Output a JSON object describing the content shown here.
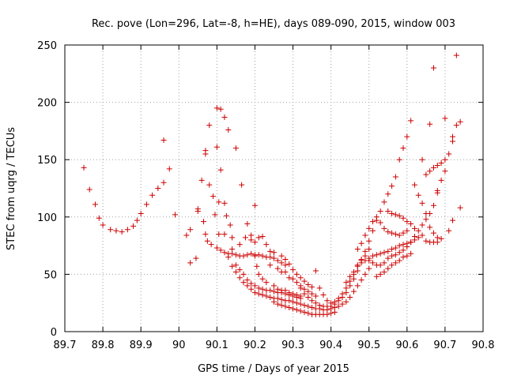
{
  "chart_data": {
    "type": "scatter",
    "title": "Rec. pove (Lon=296, Lat=-8, h=HE), days 089-090, 2015, window 003",
    "xlabel": "GPS time / Days of year 2015",
    "ylabel": "STEC from uqrg / TECUs",
    "xlim": [
      89.7,
      90.8
    ],
    "ylim": [
      0,
      250
    ],
    "xticks": [
      "89.7",
      "89.8",
      "89.9",
      "90",
      "90.1",
      "90.2",
      "90.3",
      "90.4",
      "90.5",
      "90.6",
      "90.7",
      "90.8"
    ],
    "yticks": [
      "0",
      "50",
      "100",
      "150",
      "200",
      "250"
    ],
    "grid": true,
    "marker": "+",
    "color": "#cc0000",
    "points": [
      [
        89.75,
        143
      ],
      [
        89.765,
        124
      ],
      [
        89.78,
        111
      ],
      [
        89.79,
        99
      ],
      [
        89.8,
        93
      ],
      [
        89.82,
        89
      ],
      [
        89.835,
        88
      ],
      [
        89.85,
        87
      ],
      [
        89.865,
        89
      ],
      [
        89.88,
        92
      ],
      [
        89.89,
        97
      ],
      [
        89.9,
        103
      ],
      [
        89.915,
        111
      ],
      [
        89.93,
        119
      ],
      [
        89.945,
        125
      ],
      [
        89.96,
        130
      ],
      [
        89.975,
        142
      ],
      [
        89.96,
        167
      ],
      [
        89.99,
        102
      ],
      [
        90.02,
        84
      ],
      [
        90.03,
        89
      ],
      [
        90.05,
        105
      ],
      [
        90.05,
        107
      ],
      [
        90.065,
        96
      ],
      [
        90.07,
        85
      ],
      [
        90.075,
        79
      ],
      [
        90.085,
        76
      ],
      [
        90.1,
        73
      ],
      [
        90.11,
        71
      ],
      [
        90.12,
        69
      ],
      [
        90.13,
        68
      ],
      [
        90.14,
        68
      ],
      [
        90.15,
        67
      ],
      [
        90.16,
        66
      ],
      [
        90.17,
        66
      ],
      [
        90.18,
        67
      ],
      [
        90.19,
        68
      ],
      [
        90.2,
        67
      ],
      [
        90.21,
        67
      ],
      [
        90.22,
        66
      ],
      [
        90.23,
        65
      ],
      [
        90.24,
        65
      ],
      [
        90.25,
        64
      ],
      [
        90.26,
        62
      ],
      [
        90.27,
        60
      ],
      [
        90.28,
        58
      ],
      [
        90.03,
        60
      ],
      [
        90.045,
        64
      ],
      [
        90.06,
        132
      ],
      [
        90.07,
        155
      ],
      [
        90.07,
        158
      ],
      [
        90.08,
        128
      ],
      [
        90.08,
        180
      ],
      [
        90.09,
        118
      ],
      [
        90.1,
        161
      ],
      [
        90.1,
        195
      ],
      [
        90.11,
        194
      ],
      [
        90.11,
        141
      ],
      [
        90.12,
        187
      ],
      [
        90.13,
        176
      ],
      [
        90.15,
        160
      ],
      [
        90.165,
        128
      ],
      [
        90.095,
        102
      ],
      [
        90.105,
        113
      ],
      [
        90.12,
        112
      ],
      [
        90.125,
        101
      ],
      [
        90.135,
        93
      ],
      [
        90.14,
        82
      ],
      [
        90.105,
        85
      ],
      [
        90.12,
        85
      ],
      [
        90.2,
        110
      ],
      [
        90.13,
        65
      ],
      [
        90.14,
        57
      ],
      [
        90.15,
        52
      ],
      [
        90.16,
        47
      ],
      [
        90.17,
        43
      ],
      [
        90.18,
        40
      ],
      [
        90.19,
        37
      ],
      [
        90.2,
        34
      ],
      [
        90.21,
        33
      ],
      [
        90.22,
        32
      ],
      [
        90.23,
        31
      ],
      [
        90.24,
        30
      ],
      [
        90.25,
        29
      ],
      [
        90.26,
        29
      ],
      [
        90.27,
        28
      ],
      [
        90.28,
        27
      ],
      [
        90.29,
        27
      ],
      [
        90.14,
        72
      ],
      [
        90.16,
        76
      ],
      [
        90.175,
        82
      ],
      [
        90.19,
        80
      ],
      [
        90.2,
        78
      ],
      [
        90.21,
        82
      ],
      [
        90.22,
        83
      ],
      [
        90.23,
        76
      ],
      [
        90.24,
        70
      ],
      [
        90.25,
        69
      ],
      [
        90.27,
        66
      ],
      [
        90.28,
        63
      ],
      [
        90.29,
        59
      ],
      [
        90.3,
        54
      ],
      [
        90.31,
        50
      ],
      [
        90.32,
        47
      ],
      [
        90.33,
        44
      ],
      [
        90.34,
        41
      ],
      [
        90.35,
        39
      ],
      [
        90.15,
        58
      ],
      [
        90.16,
        54
      ],
      [
        90.17,
        50
      ],
      [
        90.18,
        45
      ],
      [
        90.19,
        42
      ],
      [
        90.2,
        40
      ],
      [
        90.21,
        38
      ],
      [
        90.22,
        37
      ],
      [
        90.23,
        36
      ],
      [
        90.24,
        36
      ],
      [
        90.25,
        35
      ],
      [
        90.26,
        34
      ],
      [
        90.27,
        34
      ],
      [
        90.28,
        33
      ],
      [
        90.29,
        32
      ],
      [
        90.3,
        31
      ],
      [
        90.31,
        30
      ],
      [
        90.32,
        29
      ],
      [
        90.18,
        94
      ],
      [
        90.19,
        84
      ],
      [
        90.2,
        66
      ],
      [
        90.205,
        57
      ],
      [
        90.21,
        50
      ],
      [
        90.22,
        46
      ],
      [
        90.23,
        43
      ],
      [
        90.25,
        40
      ],
      [
        90.26,
        37
      ],
      [
        90.27,
        36
      ],
      [
        90.28,
        36
      ],
      [
        90.29,
        34
      ],
      [
        90.3,
        33
      ],
      [
        90.31,
        32
      ],
      [
        90.32,
        31
      ],
      [
        90.24,
        58
      ],
      [
        90.26,
        55
      ],
      [
        90.27,
        52
      ],
      [
        90.28,
        52
      ],
      [
        90.29,
        47
      ],
      [
        90.3,
        46
      ],
      [
        90.31,
        43
      ],
      [
        90.32,
        40
      ],
      [
        90.33,
        37
      ],
      [
        90.34,
        35
      ],
      [
        90.35,
        33
      ],
      [
        90.36,
        31
      ],
      [
        90.25,
        26
      ],
      [
        90.26,
        24
      ],
      [
        90.27,
        23
      ],
      [
        90.28,
        22
      ],
      [
        90.29,
        21
      ],
      [
        90.3,
        20
      ],
      [
        90.31,
        19
      ],
      [
        90.32,
        18
      ],
      [
        90.33,
        17
      ],
      [
        90.34,
        16
      ],
      [
        90.35,
        15
      ],
      [
        90.36,
        15
      ],
      [
        90.37,
        15
      ],
      [
        90.38,
        15
      ],
      [
        90.39,
        15
      ],
      [
        90.4,
        16
      ],
      [
        90.41,
        17
      ],
      [
        90.3,
        26
      ],
      [
        90.31,
        25
      ],
      [
        90.32,
        24
      ],
      [
        90.33,
        23
      ],
      [
        90.34,
        22
      ],
      [
        90.35,
        21
      ],
      [
        90.36,
        20
      ],
      [
        90.37,
        20
      ],
      [
        90.38,
        19
      ],
      [
        90.39,
        19
      ],
      [
        90.4,
        20
      ],
      [
        90.41,
        21
      ],
      [
        90.42,
        22
      ],
      [
        90.43,
        24
      ],
      [
        90.44,
        26
      ],
      [
        90.45,
        30
      ],
      [
        90.46,
        35
      ],
      [
        90.47,
        40
      ],
      [
        90.48,
        45
      ],
      [
        90.49,
        50
      ],
      [
        90.5,
        55
      ],
      [
        90.32,
        38
      ],
      [
        90.33,
        33
      ],
      [
        90.34,
        30
      ],
      [
        90.35,
        27
      ],
      [
        90.36,
        25
      ],
      [
        90.37,
        23
      ],
      [
        90.38,
        22
      ],
      [
        90.39,
        22
      ],
      [
        90.4,
        22
      ],
      [
        90.41,
        24
      ],
      [
        90.42,
        27
      ],
      [
        90.43,
        30
      ],
      [
        90.44,
        34
      ],
      [
        90.45,
        40
      ],
      [
        90.46,
        46
      ],
      [
        90.47,
        53
      ],
      [
        90.48,
        60
      ],
      [
        90.49,
        66
      ],
      [
        90.5,
        72
      ],
      [
        90.36,
        53
      ],
      [
        90.37,
        38
      ],
      [
        90.38,
        32
      ],
      [
        90.39,
        27
      ],
      [
        90.4,
        25
      ],
      [
        90.41,
        26
      ],
      [
        90.42,
        29
      ],
      [
        90.43,
        33
      ],
      [
        90.44,
        38
      ],
      [
        90.45,
        44
      ],
      [
        90.46,
        50
      ],
      [
        90.47,
        57
      ],
      [
        90.48,
        63
      ],
      [
        90.49,
        70
      ],
      [
        90.5,
        79
      ],
      [
        90.51,
        88
      ],
      [
        90.52,
        97
      ],
      [
        90.53,
        105
      ],
      [
        90.54,
        113
      ],
      [
        90.55,
        120
      ],
      [
        90.56,
        127
      ],
      [
        90.57,
        135
      ],
      [
        90.44,
        43
      ],
      [
        90.45,
        48
      ],
      [
        90.46,
        52
      ],
      [
        90.47,
        58
      ],
      [
        90.48,
        62
      ],
      [
        90.49,
        62
      ],
      [
        90.5,
        64
      ],
      [
        90.51,
        66
      ],
      [
        90.52,
        67
      ],
      [
        90.53,
        68
      ],
      [
        90.54,
        69
      ],
      [
        90.55,
        70
      ],
      [
        90.56,
        72
      ],
      [
        90.57,
        73
      ],
      [
        90.58,
        75
      ],
      [
        90.59,
        76
      ],
      [
        90.6,
        77
      ],
      [
        90.61,
        78
      ],
      [
        90.62,
        80
      ],
      [
        90.63,
        82
      ],
      [
        90.64,
        84
      ],
      [
        90.47,
        72
      ],
      [
        90.48,
        77
      ],
      [
        90.49,
        84
      ],
      [
        90.5,
        90
      ],
      [
        90.51,
        96
      ],
      [
        90.52,
        100
      ],
      [
        90.53,
        95
      ],
      [
        90.54,
        90
      ],
      [
        90.55,
        87
      ],
      [
        90.56,
        86
      ],
      [
        90.57,
        85
      ],
      [
        90.58,
        84
      ],
      [
        90.59,
        86
      ],
      [
        90.6,
        88
      ],
      [
        90.5,
        62
      ],
      [
        90.51,
        60
      ],
      [
        90.52,
        58
      ],
      [
        90.53,
        58
      ],
      [
        90.54,
        60
      ],
      [
        90.55,
        64
      ],
      [
        90.56,
        66
      ],
      [
        90.57,
        67
      ],
      [
        90.58,
        69
      ],
      [
        90.59,
        71
      ],
      [
        90.6,
        74
      ],
      [
        90.61,
        78
      ],
      [
        90.62,
        83
      ],
      [
        90.63,
        88
      ],
      [
        90.64,
        93
      ],
      [
        90.65,
        98
      ],
      [
        90.66,
        103
      ],
      [
        90.67,
        110
      ],
      [
        90.68,
        121
      ],
      [
        90.52,
        48
      ],
      [
        90.53,
        50
      ],
      [
        90.54,
        52
      ],
      [
        90.55,
        55
      ],
      [
        90.56,
        58
      ],
      [
        90.57,
        60
      ],
      [
        90.58,
        62
      ],
      [
        90.59,
        65
      ],
      [
        90.6,
        66
      ],
      [
        90.61,
        68
      ],
      [
        90.55,
        105
      ],
      [
        90.56,
        103
      ],
      [
        90.57,
        102
      ],
      [
        90.58,
        101
      ],
      [
        90.59,
        99
      ],
      [
        90.6,
        96
      ],
      [
        90.61,
        94
      ],
      [
        90.62,
        90
      ],
      [
        90.58,
        150
      ],
      [
        90.59,
        160
      ],
      [
        90.6,
        170
      ],
      [
        90.61,
        184
      ],
      [
        90.62,
        128
      ],
      [
        90.63,
        119
      ],
      [
        90.64,
        112
      ],
      [
        90.65,
        103
      ],
      [
        90.66,
        91
      ],
      [
        90.67,
        86
      ],
      [
        90.68,
        82
      ],
      [
        90.64,
        150
      ],
      [
        90.65,
        137
      ],
      [
        90.66,
        140
      ],
      [
        90.67,
        143
      ],
      [
        90.68,
        145
      ],
      [
        90.69,
        147
      ],
      [
        90.7,
        150
      ],
      [
        90.71,
        155
      ],
      [
        90.72,
        166
      ],
      [
        90.72,
        170
      ],
      [
        90.73,
        180
      ],
      [
        90.74,
        183
      ],
      [
        90.74,
        108
      ],
      [
        90.66,
        181
      ],
      [
        90.67,
        230
      ],
      [
        90.7,
        186
      ],
      [
        90.73,
        241
      ],
      [
        90.68,
        123
      ],
      [
        90.69,
        132
      ],
      [
        90.7,
        140
      ],
      [
        90.65,
        79
      ],
      [
        90.66,
        78
      ],
      [
        90.67,
        78
      ],
      [
        90.68,
        78
      ],
      [
        90.69,
        81
      ],
      [
        90.71,
        88
      ],
      [
        90.72,
        97
      ]
    ]
  }
}
